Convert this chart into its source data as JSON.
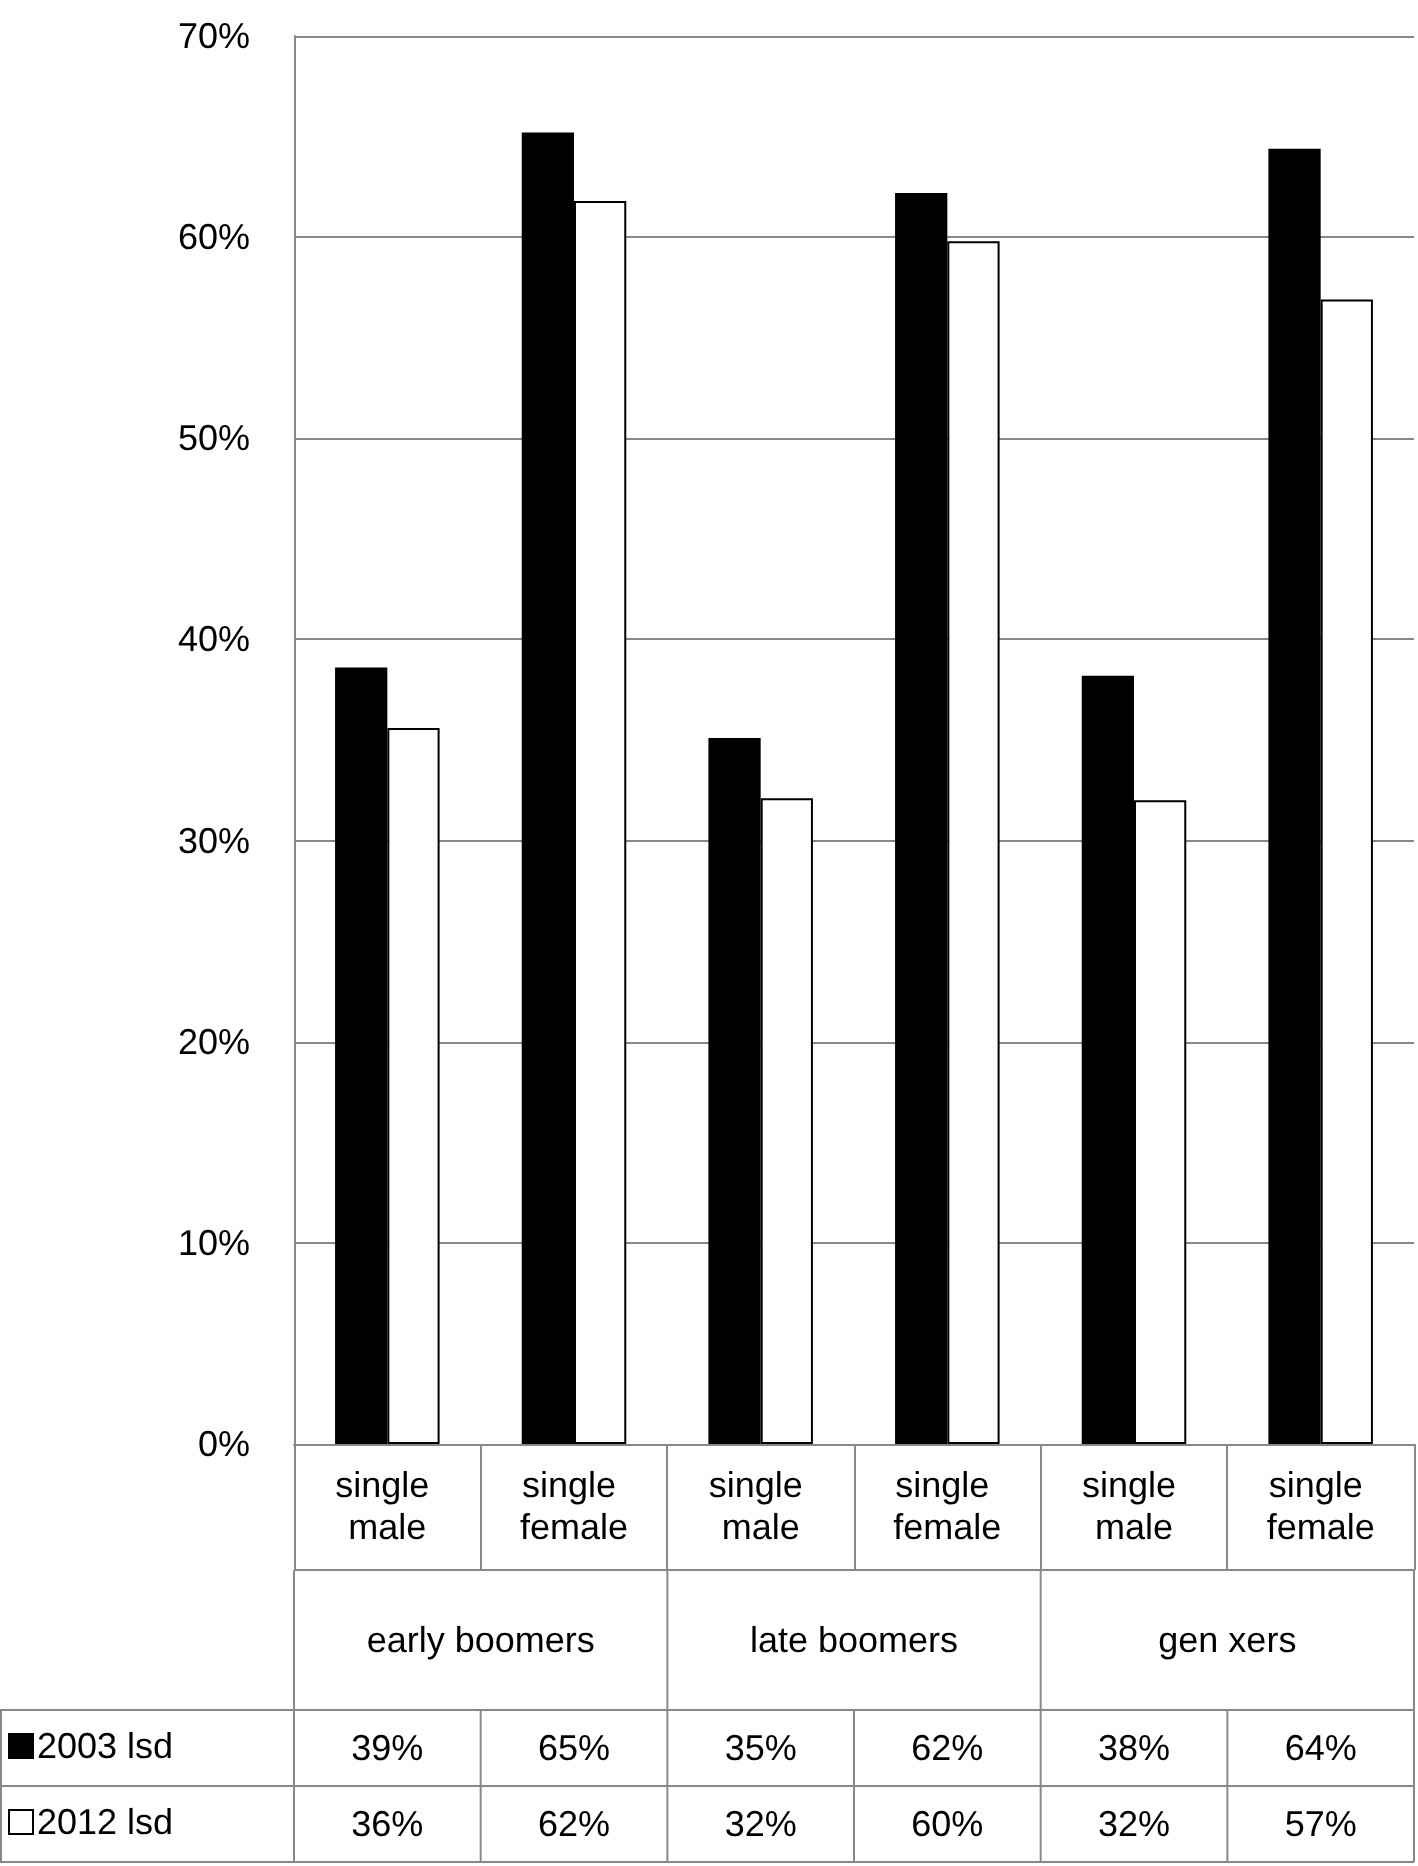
{
  "chart_data": {
    "type": "bar",
    "categories": [
      "single male",
      "single female",
      "single male",
      "single female",
      "single male",
      "single female"
    ],
    "series": [
      {
        "name": "2003 lsd",
        "color": "#000000",
        "values": [
          38.6,
          65.2,
          35.1,
          62.2,
          38.2,
          64.4
        ],
        "value_labels": [
          "39%",
          "65%",
          "35%",
          "62%",
          "38%",
          "64%"
        ]
      },
      {
        "name": "2012 lsd",
        "color": "#ffffff",
        "values": [
          35.6,
          61.8,
          32.1,
          59.8,
          32.0,
          56.9
        ],
        "value_labels": [
          "36%",
          "62%",
          "32%",
          "60%",
          "32%",
          "57%"
        ]
      }
    ],
    "annotations": [
      "early boomers",
      "late boomers",
      "gen xers"
    ],
    "ylim": [
      0,
      70
    ],
    "yticks": [
      {
        "value": 0,
        "label": "0%"
      },
      {
        "value": 10,
        "label": "10%"
      },
      {
        "value": 20,
        "label": "20%"
      },
      {
        "value": 30,
        "label": "30%"
      },
      {
        "value": 40,
        "label": "40%"
      },
      {
        "value": 50,
        "label": "50%"
      },
      {
        "value": 60,
        "label": "60%"
      },
      {
        "value": 70,
        "label": "70%"
      }
    ],
    "grid": "y",
    "legend": "bottom left"
  }
}
